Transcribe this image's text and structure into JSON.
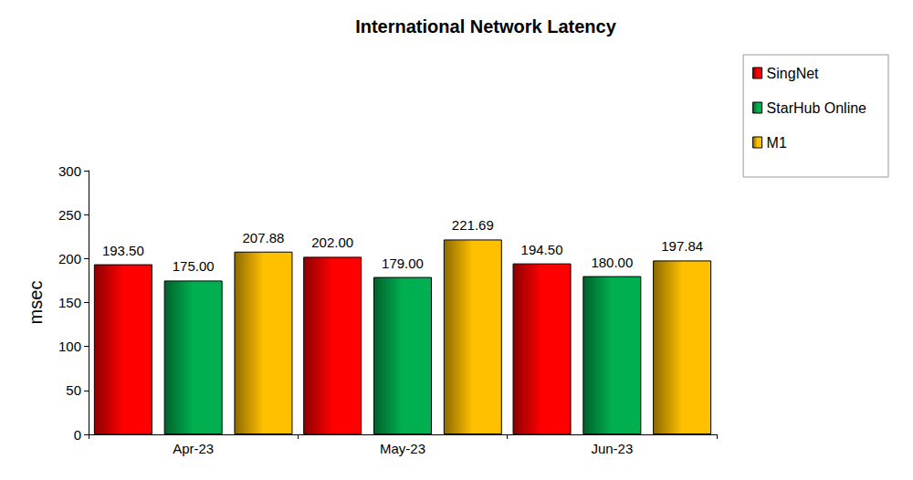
{
  "chart_data": {
    "type": "bar",
    "title": "International Network Latency",
    "y_label": "msec",
    "categories": [
      "Apr-23",
      "May-23",
      "Jun-23"
    ],
    "series": [
      {
        "name": "SingNet",
        "color": "#ff0000",
        "values": [
          193.5,
          202,
          194.5
        ],
        "value_labels": [
          "193.50",
          "202.00",
          "194.50"
        ]
      },
      {
        "name": "StarHub Online",
        "color": "#00b050",
        "values": [
          175,
          179,
          180
        ],
        "value_labels": [
          "175.00",
          "179.00",
          "180.00"
        ]
      },
      {
        "name": "M1",
        "color": "#ffc000",
        "values": [
          207.88,
          221.69,
          197.84
        ],
        "value_labels": [
          "207.88",
          "221.69",
          "197.84"
        ]
      }
    ],
    "ylim": [
      0,
      300
    ],
    "yticks": [
      0,
      50,
      100,
      150,
      200,
      250,
      300
    ],
    "grid": false,
    "legend": "top-right",
    "data_labels": true
  }
}
